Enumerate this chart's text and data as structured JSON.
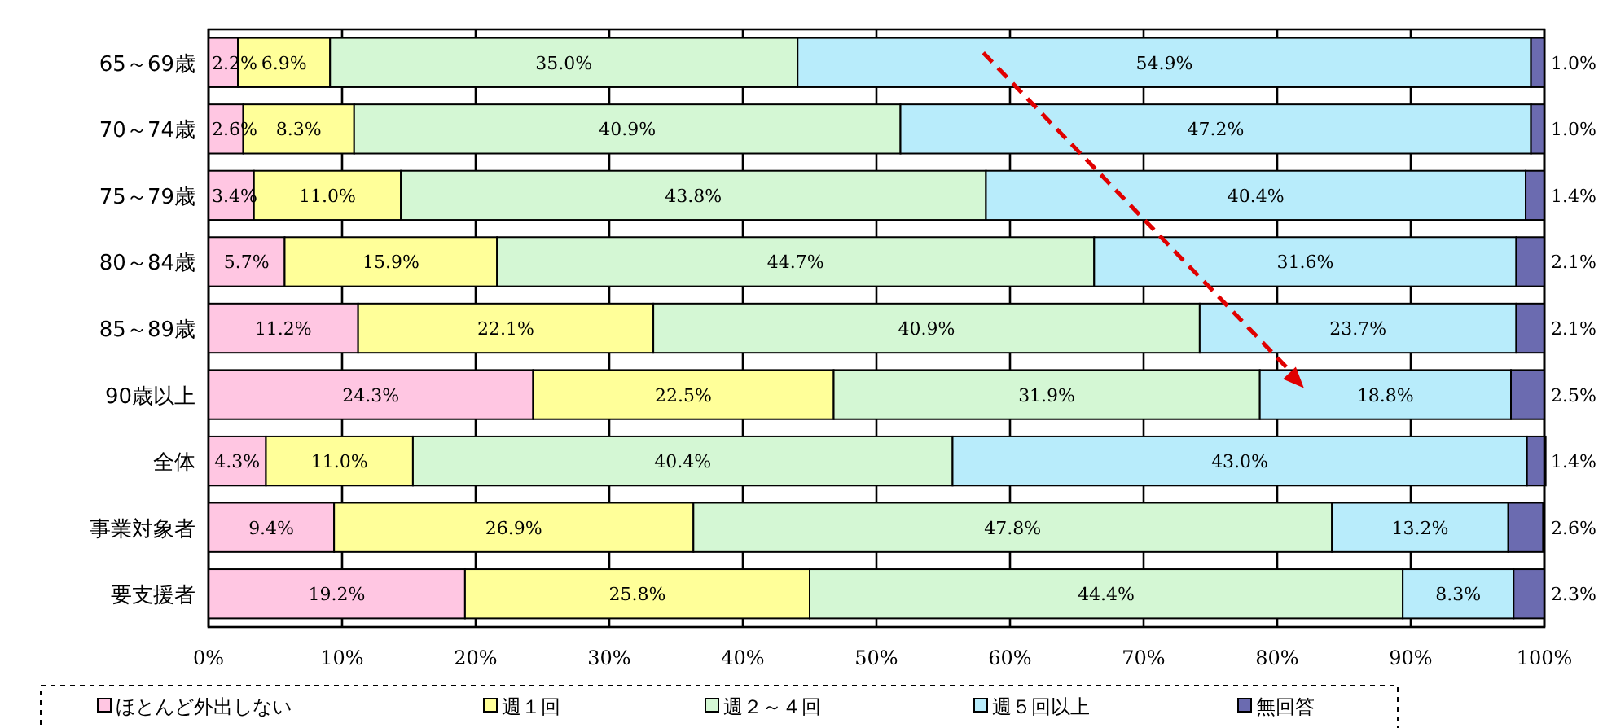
{
  "chart_data": {
    "type": "bar",
    "orientation": "horizontal",
    "stacked": true,
    "categories": [
      "65～69歳",
      "70～74歳",
      "75～79歳",
      "80～84歳",
      "85～89歳",
      "90歳以上",
      "全体",
      "事業対象者",
      "要支援者"
    ],
    "series": [
      {
        "name": "ほとんど外出しない",
        "color": "#ffc6e2",
        "values": [
          2.2,
          2.6,
          3.4,
          5.7,
          11.2,
          24.3,
          4.3,
          9.4,
          19.2
        ],
        "value_labels": [
          "2.2%",
          "2.6%",
          "3.4%",
          "5.7%",
          "11.2%",
          "24.3%",
          "4.3%",
          "9.4%",
          "19.2%"
        ]
      },
      {
        "name": "週１回",
        "color": "#ffff99",
        "values": [
          6.9,
          8.3,
          11.0,
          15.9,
          22.1,
          22.5,
          11.0,
          26.9,
          25.8
        ],
        "value_labels": [
          "6.9%",
          "8.3%",
          "11.0%",
          "15.9%",
          "22.1%",
          "22.5%",
          "11.0%",
          "26.9%",
          "25.8%"
        ]
      },
      {
        "name": "週２～４回",
        "color": "#d4f7d4",
        "values": [
          35.0,
          40.9,
          43.8,
          44.7,
          40.9,
          31.9,
          40.4,
          47.8,
          44.4
        ],
        "value_labels": [
          "35.0%",
          "40.9%",
          "43.8%",
          "44.7%",
          "40.9%",
          "31.9%",
          "40.4%",
          "47.8%",
          "44.4%"
        ]
      },
      {
        "name": "週５回以上",
        "color": "#b8ecfb",
        "values": [
          54.9,
          47.2,
          40.4,
          31.6,
          23.7,
          18.8,
          43.0,
          13.2,
          8.3
        ],
        "value_labels": [
          "54.9%",
          "47.2%",
          "40.4%",
          "31.6%",
          "23.7%",
          "18.8%",
          "43.0%",
          "13.2%",
          "8.3%"
        ]
      },
      {
        "name": "無回答",
        "color": "#6b6bb0",
        "values": [
          1.0,
          1.0,
          1.4,
          2.1,
          2.1,
          2.5,
          1.4,
          2.6,
          2.3
        ],
        "value_labels": [
          "1.0%",
          "1.0%",
          "1.4%",
          "2.1%",
          "2.1%",
          "2.5%",
          "1.4%",
          "2.6%",
          "2.3%"
        ]
      }
    ],
    "xlim": [
      0,
      100
    ],
    "xticks": [
      {
        "value": 0,
        "label": "0%"
      },
      {
        "value": 10,
        "label": "10%"
      },
      {
        "value": 20,
        "label": "20%"
      },
      {
        "value": 30,
        "label": "30%"
      },
      {
        "value": 40,
        "label": "40%"
      },
      {
        "value": 50,
        "label": "50%"
      },
      {
        "value": 60,
        "label": "60%"
      },
      {
        "value": 70,
        "label": "70%"
      },
      {
        "value": 80,
        "label": "80%"
      },
      {
        "value": 90,
        "label": "90%"
      },
      {
        "value": 100,
        "label": "100%"
      }
    ],
    "grid": "x",
    "legend": "bottom"
  }
}
